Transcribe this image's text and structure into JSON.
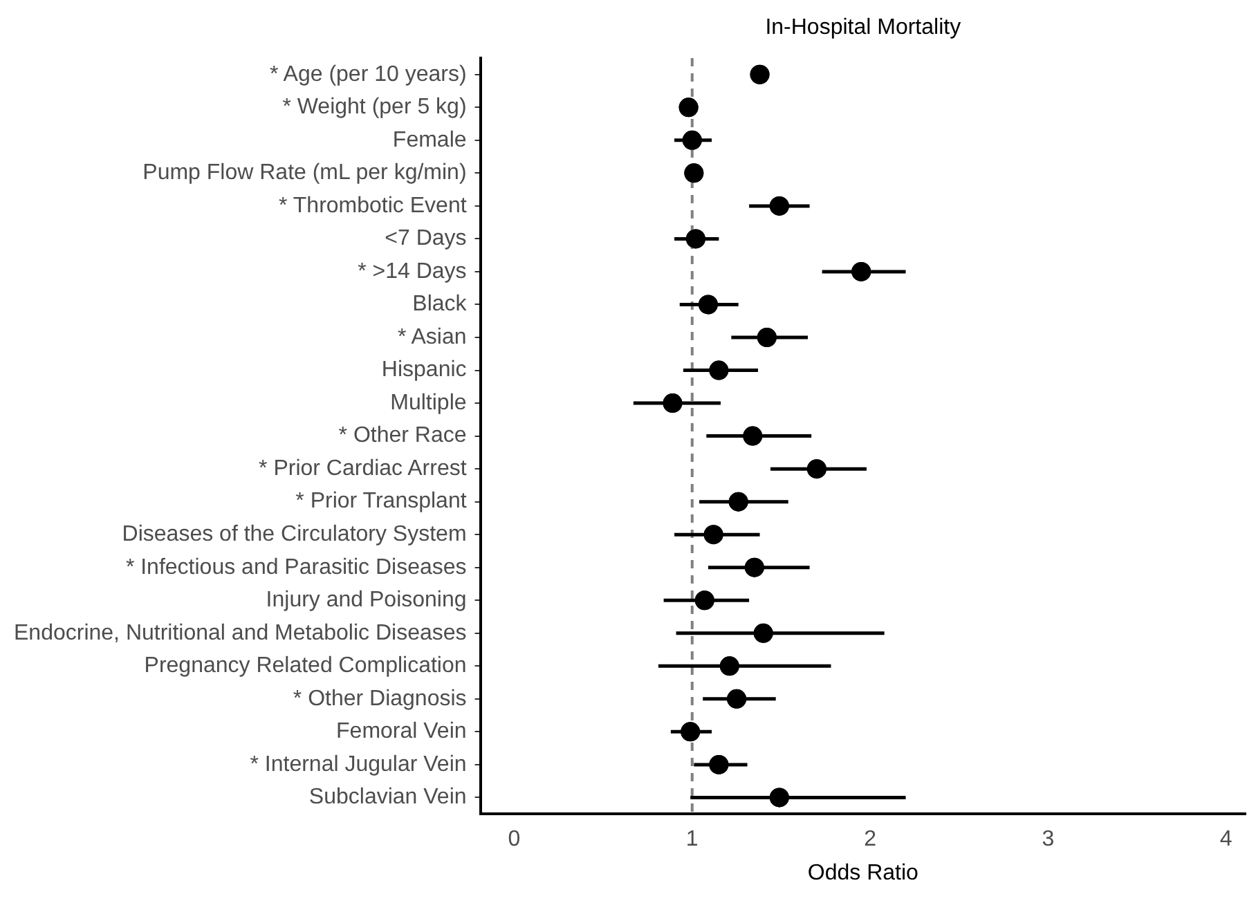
{
  "chart_data": {
    "type": "scatter",
    "orientation": "horizontal",
    "title": "In-Hospital Mortality",
    "xlabel": "Odds Ratio",
    "categories": [
      "* Age (per 10 years)",
      "* Weight (per 5 kg)",
      "Female",
      "Pump Flow Rate (mL per kg/min)",
      "* Thrombotic Event",
      "<7 Days",
      "* >14 Days",
      "Black",
      "* Asian",
      "Hispanic",
      "Multiple",
      "* Other Race",
      "* Prior Cardiac Arrest",
      "* Prior Transplant",
      "Diseases of the Circulatory System",
      "* Infectious and Parasitic Diseases",
      "Injury and Poisoning",
      "Endocrine, Nutritional and Metabolic Diseases",
      "Pregnancy Related Complication",
      "* Other Diagnosis",
      "Femoral Vein",
      "* Internal Jugular Vein",
      "Subclavian Vein"
    ],
    "values": [
      1.38,
      0.98,
      1.0,
      1.01,
      1.49,
      1.02,
      1.95,
      1.09,
      1.42,
      1.15,
      0.89,
      1.34,
      1.7,
      1.26,
      1.12,
      1.35,
      1.07,
      1.4,
      1.21,
      1.25,
      0.99,
      1.15,
      1.49
    ],
    "errors": [
      null,
      null,
      [
        0.9,
        1.11
      ],
      null,
      [
        1.32,
        1.66
      ],
      [
        0.9,
        1.15
      ],
      [
        1.73,
        2.2
      ],
      [
        0.93,
        1.26
      ],
      [
        1.22,
        1.65
      ],
      [
        0.95,
        1.37
      ],
      [
        0.67,
        1.16
      ],
      [
        1.08,
        1.67
      ],
      [
        1.44,
        1.98
      ],
      [
        1.04,
        1.54
      ],
      [
        0.9,
        1.38
      ],
      [
        1.09,
        1.66
      ],
      [
        0.84,
        1.32
      ],
      [
        0.91,
        2.08
      ],
      [
        0.81,
        1.78
      ],
      [
        1.06,
        1.47
      ],
      [
        0.88,
        1.11
      ],
      [
        1.01,
        1.31
      ],
      [
        0.99,
        2.2
      ]
    ],
    "color": "#000000",
    "marker": "circle",
    "xlim": [
      -0.19,
      4.11
    ],
    "xticks": [
      0,
      1,
      2,
      3,
      4
    ],
    "ref_lines": [
      {
        "axis": "x",
        "value": 1,
        "color": "#808080",
        "line_style": "dashed"
      }
    ],
    "grid": false,
    "legend": false
  }
}
